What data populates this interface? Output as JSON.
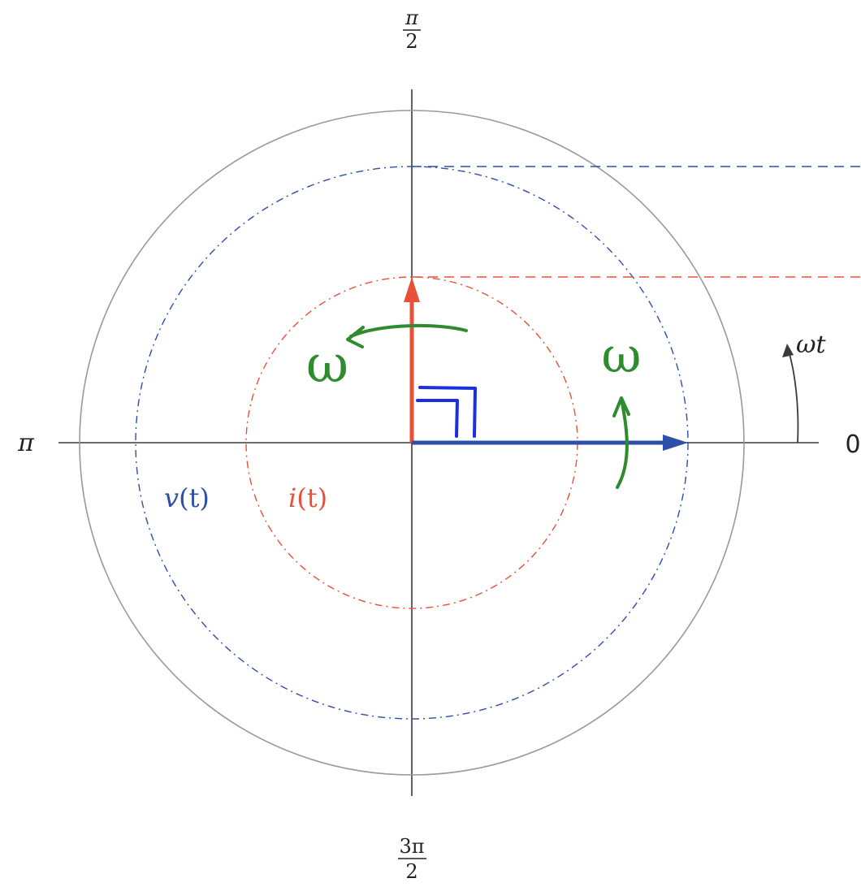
{
  "colors": {
    "axis": "#3a3a3a",
    "outer_circle": "#999999",
    "voltage": "#2e4fa8",
    "current": "#e8503a",
    "annotation": "#2e8b2e",
    "right_angle_mark": "#1a2fe0"
  },
  "angle_labels": {
    "top_numerator": "π",
    "top_denominator": "2",
    "left": "π",
    "right": "0",
    "bottom_numerator": "3π",
    "bottom_denominator": "2"
  },
  "rotation_label": {
    "omega": "ω",
    "t": "t"
  },
  "signals": {
    "voltage": {
      "name": "v",
      "arg": "(t)"
    },
    "current": {
      "name": "i",
      "arg": "(t)"
    }
  },
  "annotations": {
    "omega_left": "ω",
    "omega_right": "ω"
  }
}
